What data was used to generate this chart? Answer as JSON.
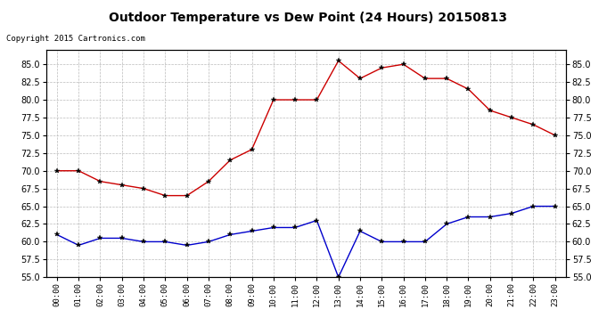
{
  "title": "Outdoor Temperature vs Dew Point (24 Hours) 20150813",
  "copyright": "Copyright 2015 Cartronics.com",
  "hours": [
    "00:00",
    "01:00",
    "02:00",
    "03:00",
    "04:00",
    "05:00",
    "06:00",
    "07:00",
    "08:00",
    "09:00",
    "10:00",
    "11:00",
    "12:00",
    "13:00",
    "14:00",
    "15:00",
    "16:00",
    "17:00",
    "18:00",
    "19:00",
    "20:00",
    "21:00",
    "22:00",
    "23:00"
  ],
  "temperature": [
    70.0,
    70.0,
    68.5,
    68.0,
    67.5,
    66.5,
    66.5,
    68.5,
    71.5,
    73.0,
    80.0,
    80.0,
    80.0,
    85.5,
    83.0,
    84.5,
    85.0,
    83.0,
    83.0,
    81.5,
    78.5,
    77.5,
    76.5,
    75.0
  ],
  "dew_point": [
    61.0,
    59.5,
    60.5,
    60.5,
    60.0,
    60.0,
    59.5,
    60.0,
    61.0,
    61.5,
    62.0,
    62.0,
    63.0,
    55.0,
    61.5,
    60.0,
    60.0,
    60.0,
    62.5,
    63.5,
    63.5,
    64.0,
    65.0,
    65.0
  ],
  "temp_color": "#cc0000",
  "dew_color": "#0000cc",
  "ylim": [
    55.0,
    87.0
  ],
  "yticks": [
    55.0,
    57.5,
    60.0,
    62.5,
    65.0,
    67.5,
    70.0,
    72.5,
    75.0,
    77.5,
    80.0,
    82.5,
    85.0
  ],
  "bg_color": "#ffffff",
  "grid_color": "#bbbbbb",
  "legend_dew_bg": "#0000cc",
  "legend_temp_bg": "#cc0000",
  "legend_text_color": "#ffffff"
}
